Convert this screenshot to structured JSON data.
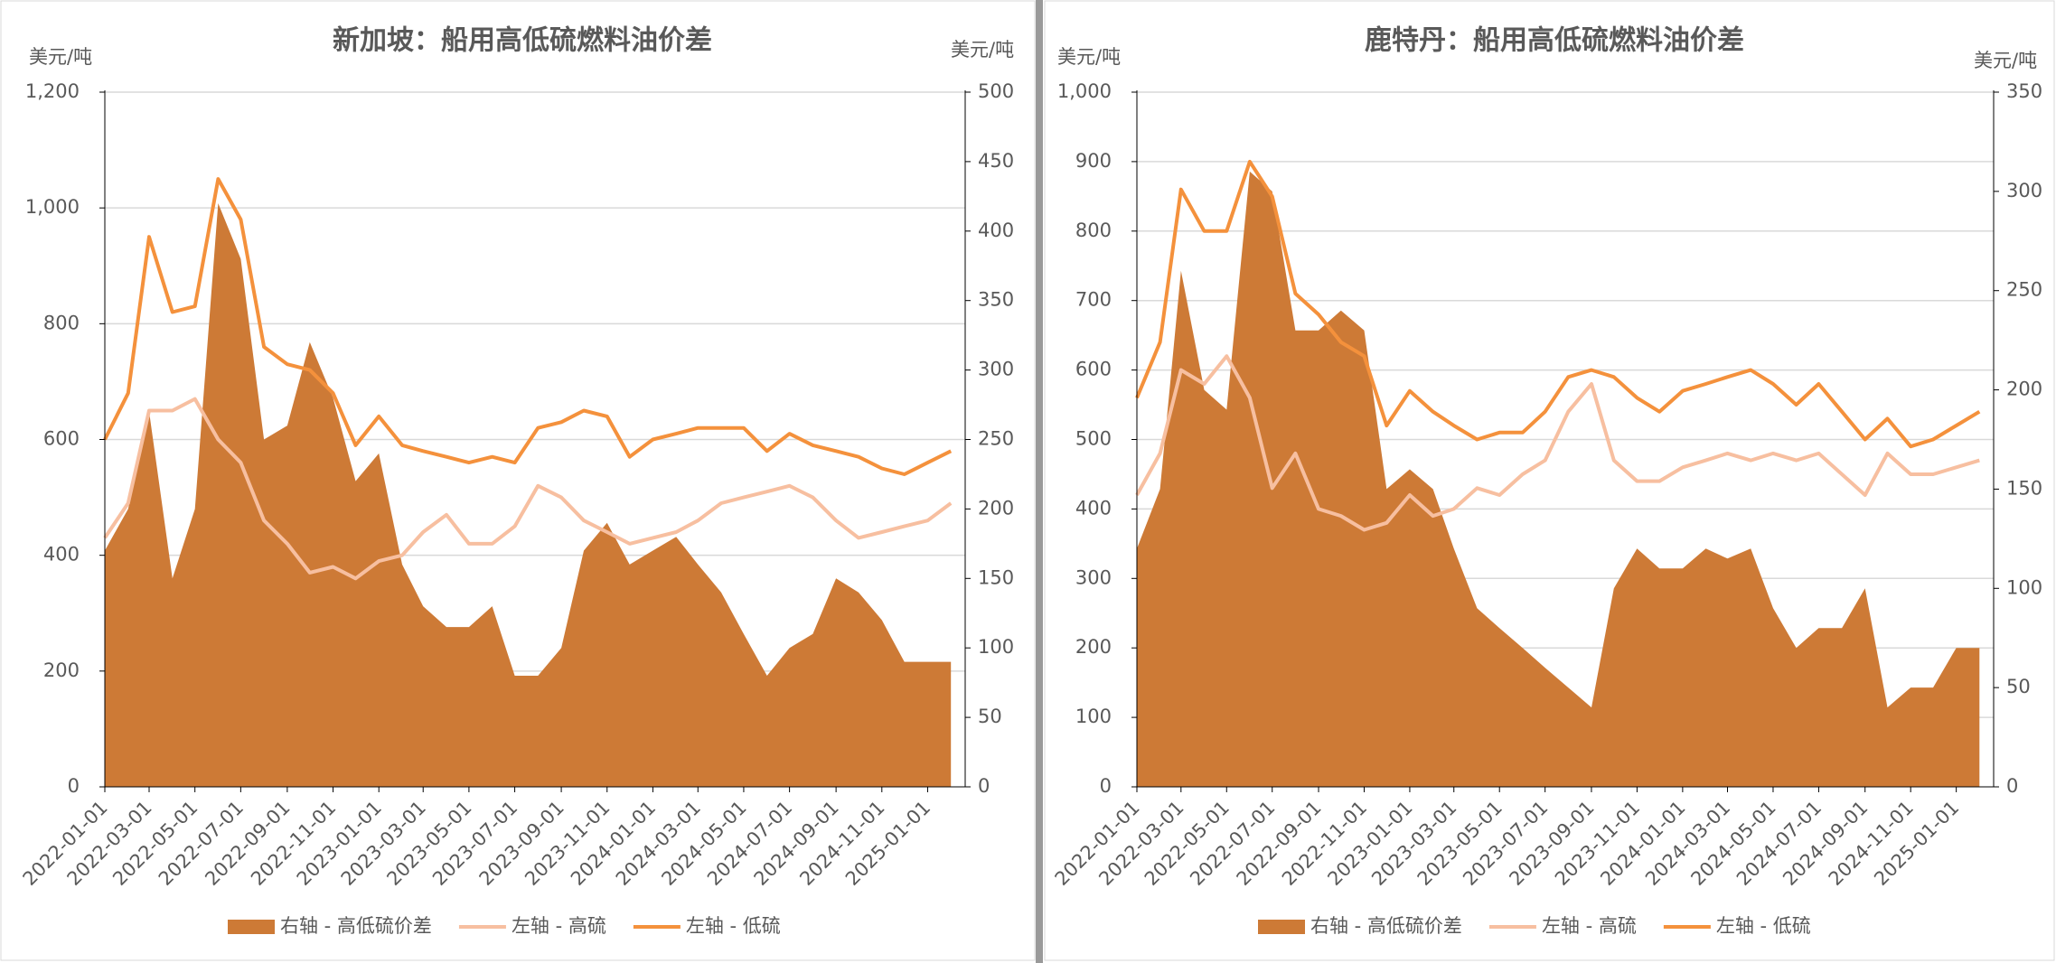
{
  "chart_data": [
    {
      "type": "combo",
      "title": "新加坡：船用高低硫燃料油价差",
      "ylabel": "美元/吨",
      "y2label": "美元/吨",
      "x": [
        "2022-01-01",
        "2022-02-01",
        "2022-03-01",
        "2022-04-01",
        "2022-05-01",
        "2022-06-01",
        "2022-07-01",
        "2022-08-01",
        "2022-09-01",
        "2022-10-01",
        "2022-11-01",
        "2022-12-01",
        "2023-01-01",
        "2023-02-01",
        "2023-03-01",
        "2023-04-01",
        "2023-05-01",
        "2023-06-01",
        "2023-07-01",
        "2023-08-01",
        "2023-09-01",
        "2023-10-01",
        "2023-11-01",
        "2023-12-01",
        "2024-01-01",
        "2024-02-01",
        "2024-03-01",
        "2024-04-01",
        "2024-05-01",
        "2024-06-01",
        "2024-07-01",
        "2024-08-01",
        "2024-09-01",
        "2024-10-01",
        "2024-11-01",
        "2024-12-01",
        "2025-01-01",
        "2025-02-01"
      ],
      "xlim": [
        "2022-01-01",
        "2025-02-20"
      ],
      "xticks": [
        "2022-01-01",
        "2022-03-01",
        "2022-05-01",
        "2022-07-01",
        "2022-09-01",
        "2022-11-01",
        "2023-01-01",
        "2023-03-01",
        "2023-05-01",
        "2023-07-01",
        "2023-09-01",
        "2023-11-01",
        "2024-01-01",
        "2024-03-01",
        "2024-05-01",
        "2024-07-01",
        "2024-09-01",
        "2024-11-01",
        "2025-01-01"
      ],
      "ylim": [
        0,
        1200
      ],
      "yticks": [
        0,
        200,
        400,
        600,
        800,
        {
          "value": 1000,
          "label": "1,000"
        },
        {
          "value": 1200,
          "label": "1,200"
        }
      ],
      "y2lim": [
        0,
        500
      ],
      "y2ticks": [
        0,
        50,
        100,
        150,
        200,
        250,
        300,
        350,
        400,
        450,
        500
      ],
      "grid": true,
      "legend": "bottom",
      "series": [
        {
          "name": "右轴 - 高低硫价差",
          "color": "#cd7a36",
          "kind": "area",
          "axis": "y2",
          "values": [
            170,
            200,
            270,
            150,
            200,
            420,
            380,
            250,
            260,
            320,
            280,
            220,
            240,
            160,
            130,
            115,
            115,
            130,
            80,
            80,
            100,
            170,
            190,
            160,
            170,
            180,
            160,
            140,
            110,
            80,
            100,
            110,
            150,
            140,
            120,
            90,
            90,
            90
          ]
        },
        {
          "name": "左轴 - 高硫",
          "color": "#f7bfa0",
          "kind": "line",
          "values": [
            430,
            490,
            650,
            650,
            670,
            600,
            560,
            460,
            420,
            370,
            380,
            360,
            390,
            400,
            440,
            470,
            420,
            420,
            450,
            520,
            500,
            460,
            440,
            420,
            430,
            440,
            460,
            490,
            500,
            510,
            520,
            500,
            460,
            430,
            440,
            450,
            460,
            490
          ]
        },
        {
          "name": "左轴 - 低硫",
          "color": "#f4913c",
          "kind": "line",
          "values": [
            600,
            680,
            950,
            820,
            830,
            1050,
            980,
            760,
            730,
            720,
            680,
            590,
            640,
            590,
            580,
            570,
            560,
            570,
            560,
            620,
            630,
            650,
            640,
            570,
            600,
            610,
            620,
            620,
            620,
            580,
            610,
            590,
            580,
            570,
            550,
            540,
            560,
            580
          ]
        }
      ]
    },
    {
      "type": "combo",
      "title": "鹿特丹：船用高低硫燃料油价差",
      "ylabel": "美元/吨",
      "y2label": "美元/吨",
      "x": [
        "2022-01-01",
        "2022-02-01",
        "2022-03-01",
        "2022-04-01",
        "2022-05-01",
        "2022-06-01",
        "2022-07-01",
        "2022-08-01",
        "2022-09-01",
        "2022-10-01",
        "2022-11-01",
        "2022-12-01",
        "2023-01-01",
        "2023-02-01",
        "2023-03-01",
        "2023-04-01",
        "2023-05-01",
        "2023-06-01",
        "2023-07-01",
        "2023-08-01",
        "2023-09-01",
        "2023-10-01",
        "2023-11-01",
        "2023-12-01",
        "2024-01-01",
        "2024-02-01",
        "2024-03-01",
        "2024-04-01",
        "2024-05-01",
        "2024-06-01",
        "2024-07-01",
        "2024-08-01",
        "2024-09-01",
        "2024-10-01",
        "2024-11-01",
        "2024-12-01",
        "2025-01-01",
        "2025-02-01"
      ],
      "xlim": [
        "2022-01-01",
        "2025-02-20"
      ],
      "xticks": [
        "2022-01-01",
        "2022-03-01",
        "2022-05-01",
        "2022-07-01",
        "2022-09-01",
        "2022-11-01",
        "2023-01-01",
        "2023-03-01",
        "2023-05-01",
        "2023-07-01",
        "2023-09-01",
        "2023-11-01",
        "2024-01-01",
        "2024-03-01",
        "2024-05-01",
        "2024-07-01",
        "2024-09-01",
        "2024-11-01",
        "2025-01-01"
      ],
      "ylim": [
        0,
        1000
      ],
      "yticks": [
        0,
        100,
        200,
        300,
        400,
        500,
        600,
        700,
        800,
        900,
        {
          "value": 1000,
          "label": "1,000"
        }
      ],
      "y2lim": [
        0,
        350
      ],
      "y2ticks": [
        0,
        50,
        100,
        150,
        200,
        250,
        300,
        350
      ],
      "grid": true,
      "legend": "bottom",
      "series": [
        {
          "name": "右轴 - 高低硫价差",
          "color": "#cd7a36",
          "kind": "area",
          "axis": "y2",
          "values": [
            120,
            150,
            260,
            200,
            190,
            310,
            300,
            230,
            230,
            240,
            230,
            150,
            160,
            150,
            120,
            90,
            80,
            70,
            60,
            50,
            40,
            100,
            120,
            110,
            110,
            120,
            115,
            120,
            90,
            70,
            80,
            80,
            100,
            40,
            50,
            50,
            70,
            70
          ]
        },
        {
          "name": "左轴 - 高硫",
          "color": "#f7bfa0",
          "kind": "line",
          "values": [
            420,
            480,
            600,
            580,
            620,
            560,
            430,
            480,
            400,
            390,
            370,
            380,
            420,
            390,
            400,
            430,
            420,
            450,
            470,
            540,
            580,
            470,
            440,
            440,
            460,
            470,
            480,
            470,
            480,
            470,
            480,
            450,
            420,
            480,
            450,
            450,
            460,
            470
          ]
        },
        {
          "name": "左轴 - 低硫",
          "color": "#f4913c",
          "kind": "line",
          "values": [
            560,
            640,
            860,
            800,
            800,
            900,
            850,
            710,
            680,
            640,
            620,
            520,
            570,
            540,
            520,
            500,
            510,
            510,
            540,
            590,
            600,
            590,
            560,
            540,
            570,
            580,
            590,
            600,
            580,
            550,
            580,
            540,
            500,
            530,
            490,
            500,
            520,
            540
          ]
        }
      ]
    }
  ]
}
